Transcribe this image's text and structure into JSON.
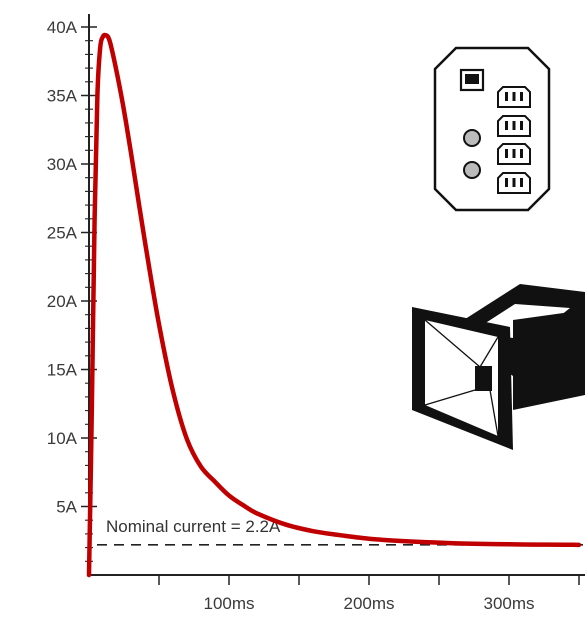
{
  "chart_data": {
    "type": "line",
    "title": "",
    "xlabel": "",
    "ylabel": "",
    "x_unit": "ms",
    "y_unit": "A",
    "xlim": [
      0,
      350
    ],
    "ylim": [
      0,
      40
    ],
    "grid": false,
    "y_ticks": [
      {
        "value": 5,
        "label": "5A"
      },
      {
        "value": 10,
        "label": "10A"
      },
      {
        "value": 15,
        "label": "15A"
      },
      {
        "value": 20,
        "label": "20A"
      },
      {
        "value": 25,
        "label": "25A"
      },
      {
        "value": 30,
        "label": "30A"
      },
      {
        "value": 35,
        "label": "35A"
      },
      {
        "value": 40,
        "label": "40A"
      }
    ],
    "x_ticks": [
      {
        "value": 100,
        "label": "100ms"
      },
      {
        "value": 200,
        "label": "200ms"
      },
      {
        "value": 300,
        "label": "300ms"
      }
    ],
    "series": [
      {
        "color": "#c00000",
        "x": [
          0,
          2,
          4,
          6,
          8,
          10,
          12,
          14,
          16,
          20,
          25,
          30,
          40,
          50,
          60,
          70,
          80,
          90,
          100,
          110,
          120,
          140,
          160,
          180,
          200,
          220,
          240,
          260,
          280,
          300,
          320,
          340,
          350
        ],
        "y": [
          0,
          12,
          26,
          35,
          38.5,
          39.3,
          39.4,
          39.2,
          38.5,
          36.6,
          33.9,
          30.8,
          24.3,
          18.3,
          13.4,
          9.9,
          7.9,
          6.8,
          5.8,
          5.1,
          4.5,
          3.7,
          3.2,
          2.9,
          2.65,
          2.5,
          2.4,
          2.32,
          2.27,
          2.24,
          2.22,
          2.21,
          2.2
        ]
      }
    ],
    "reference_lines": [
      {
        "value": 2.2,
        "style": "dashed",
        "color": "#222222"
      }
    ],
    "annotations": [
      {
        "text": "Nominal current = 2.2A"
      }
    ]
  },
  "icons": {
    "outlet_panel": "power-distribution-outlet-panel-icon",
    "speaker": "speaker-horn-icon"
  }
}
